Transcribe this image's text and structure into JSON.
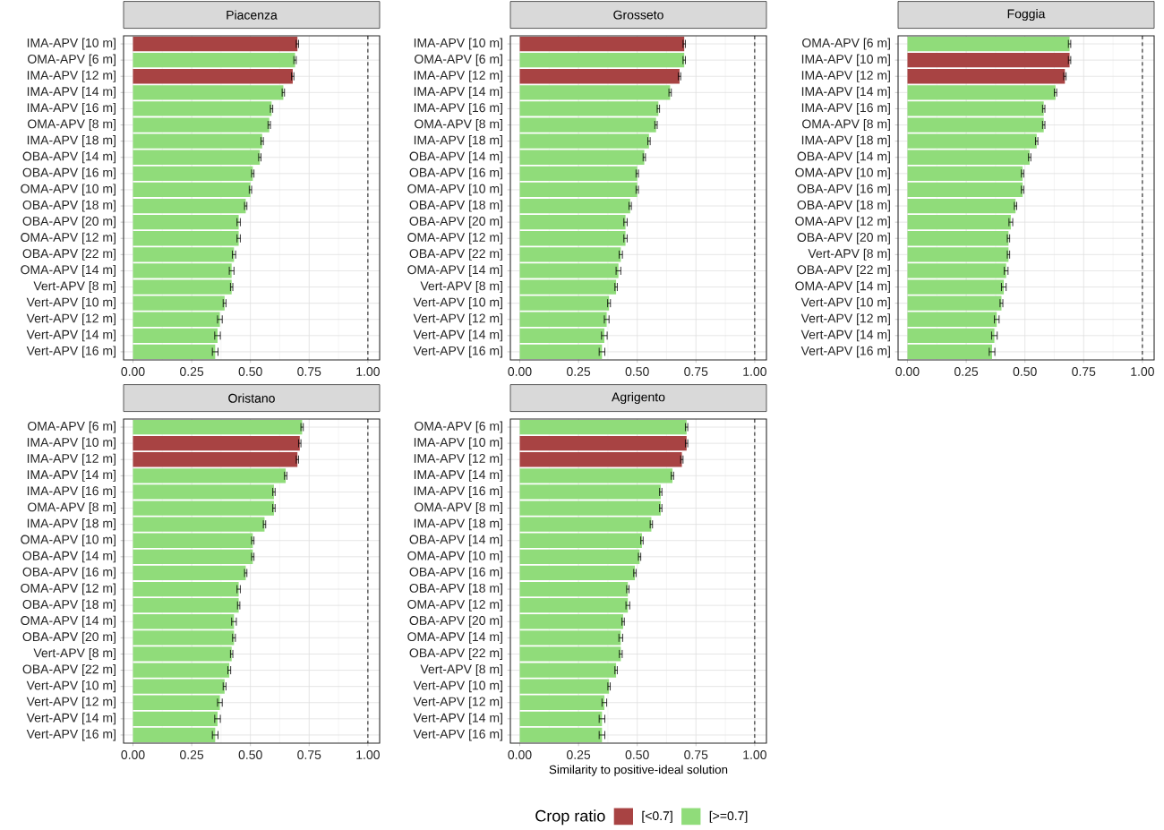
{
  "chart_data": [
    {
      "type": "bar",
      "orientation": "horizontal",
      "title": "Piacenza",
      "categories": [
        "IMA-APV [10 m]",
        "OMA-APV [6 m]",
        "IMA-APV [12 m]",
        "IMA-APV [14 m]",
        "IMA-APV [16 m]",
        "OMA-APV [8 m]",
        "IMA-APV [18 m]",
        "OBA-APV [14 m]",
        "OBA-APV [16 m]",
        "OMA-APV [10 m]",
        "OBA-APV [18 m]",
        "OBA-APV [20 m]",
        "OMA-APV [12 m]",
        "OBA-APV [22 m]",
        "OMA-APV [14 m]",
        "Vert-APV [8 m]",
        "Vert-APV [10 m]",
        "Vert-APV [12 m]",
        "Vert-APV [14 m]",
        "Vert-APV [16 m]"
      ],
      "series": [
        {
          "color": "#a84343",
          "values": [
            0.7,
            null,
            0.68,
            null,
            null,
            null,
            null,
            null,
            null,
            null,
            null,
            null,
            null,
            null,
            null,
            null,
            null,
            null,
            null,
            null
          ],
          "errors": [
            0.005,
            null,
            0.005,
            null,
            null,
            null,
            null,
            null,
            null,
            null,
            null,
            null,
            null,
            null,
            null,
            null,
            null,
            null,
            null,
            null
          ]
        },
        {
          "color": "#90dc7a",
          "values": [
            null,
            0.69,
            null,
            0.64,
            0.59,
            0.58,
            0.55,
            0.54,
            0.51,
            0.5,
            0.48,
            0.45,
            0.45,
            0.43,
            0.42,
            0.42,
            0.39,
            0.37,
            0.36,
            0.35
          ],
          "errors": [
            null,
            0.005,
            null,
            0.005,
            0.005,
            0.005,
            0.005,
            0.005,
            0.005,
            0.005,
            0.005,
            0.007,
            0.007,
            0.007,
            0.01,
            0.005,
            0.006,
            0.01,
            0.012,
            0.012
          ]
        }
      ],
      "xlim": [
        -0.04,
        1.05
      ],
      "xticks": [
        {
          "value": 0,
          "label": "0.00"
        },
        {
          "value": 0.25,
          "label": "0.25"
        },
        {
          "value": 0.5,
          "label": "0.50"
        },
        {
          "value": 0.75,
          "label": "0.75"
        },
        {
          "value": 1,
          "label": "1.00"
        }
      ],
      "grid": true,
      "ref_lines": [
        {
          "axis": "x",
          "value": 1,
          "line_style": "dashed"
        }
      ]
    },
    {
      "type": "bar",
      "orientation": "horizontal",
      "title": "Grosseto",
      "categories": [
        "IMA-APV [10 m]",
        "OMA-APV [6 m]",
        "IMA-APV [12 m]",
        "IMA-APV [14 m]",
        "IMA-APV [16 m]",
        "OMA-APV [8 m]",
        "IMA-APV [18 m]",
        "OBA-APV [14 m]",
        "OBA-APV [16 m]",
        "OMA-APV [10 m]",
        "OBA-APV [18 m]",
        "OBA-APV [20 m]",
        "OMA-APV [12 m]",
        "OBA-APV [22 m]",
        "OMA-APV [14 m]",
        "Vert-APV [8 m]",
        "Vert-APV [10 m]",
        "Vert-APV [12 m]",
        "Vert-APV [14 m]",
        "Vert-APV [16 m]"
      ],
      "series": [
        {
          "color": "#a84343",
          "values": [
            0.7,
            null,
            0.68,
            null,
            null,
            null,
            null,
            null,
            null,
            null,
            null,
            null,
            null,
            null,
            null,
            null,
            null,
            null,
            null,
            null
          ],
          "errors": [
            0.005,
            null,
            0.005,
            null,
            null,
            null,
            null,
            null,
            null,
            null,
            null,
            null,
            null,
            null,
            null,
            null,
            null,
            null,
            null,
            null
          ]
        },
        {
          "color": "#90dc7a",
          "values": [
            null,
            0.7,
            null,
            0.64,
            0.59,
            0.58,
            0.55,
            0.53,
            0.5,
            0.5,
            0.47,
            0.45,
            0.45,
            0.43,
            0.42,
            0.41,
            0.38,
            0.37,
            0.36,
            0.35
          ],
          "errors": [
            null,
            0.005,
            null,
            0.005,
            0.005,
            0.005,
            0.005,
            0.005,
            0.005,
            0.005,
            0.005,
            0.007,
            0.007,
            0.007,
            0.01,
            0.005,
            0.006,
            0.01,
            0.012,
            0.012
          ]
        }
      ],
      "xlim": [
        -0.04,
        1.05
      ],
      "xticks": [
        {
          "value": 0,
          "label": "0.00"
        },
        {
          "value": 0.25,
          "label": "0.25"
        },
        {
          "value": 0.5,
          "label": "0.50"
        },
        {
          "value": 0.75,
          "label": "0.75"
        },
        {
          "value": 1,
          "label": "1.00"
        }
      ],
      "grid": true,
      "ref_lines": [
        {
          "axis": "x",
          "value": 1,
          "line_style": "dashed"
        }
      ]
    },
    {
      "type": "bar",
      "orientation": "horizontal",
      "title": "Foggia",
      "categories": [
        "OMA-APV [6 m]",
        "IMA-APV [10 m]",
        "IMA-APV [12 m]",
        "IMA-APV [14 m]",
        "IMA-APV [16 m]",
        "OMA-APV [8 m]",
        "IMA-APV [18 m]",
        "OBA-APV [14 m]",
        "OMA-APV [10 m]",
        "OBA-APV [16 m]",
        "OBA-APV [18 m]",
        "OMA-APV [12 m]",
        "OBA-APV [20 m]",
        "Vert-APV [8 m]",
        "OBA-APV [22 m]",
        "OMA-APV [14 m]",
        "Vert-APV [10 m]",
        "Vert-APV [12 m]",
        "Vert-APV [14 m]",
        "Vert-APV [16 m]"
      ],
      "series": [
        {
          "color": "#a84343",
          "values": [
            null,
            0.69,
            0.67,
            null,
            null,
            null,
            null,
            null,
            null,
            null,
            null,
            null,
            null,
            null,
            null,
            null,
            null,
            null,
            null,
            null
          ],
          "errors": [
            null,
            0.005,
            0.005,
            null,
            null,
            null,
            null,
            null,
            null,
            null,
            null,
            null,
            null,
            null,
            null,
            null,
            null,
            null,
            null,
            null
          ]
        },
        {
          "color": "#90dc7a",
          "values": [
            0.69,
            null,
            null,
            0.63,
            0.58,
            0.58,
            0.55,
            0.52,
            0.49,
            0.49,
            0.46,
            0.44,
            0.43,
            0.43,
            0.42,
            0.41,
            0.4,
            0.38,
            0.37,
            0.36
          ],
          "errors": [
            0.005,
            null,
            null,
            0.005,
            0.005,
            0.005,
            0.005,
            0.005,
            0.005,
            0.005,
            0.005,
            0.008,
            0.005,
            0.005,
            0.008,
            0.01,
            0.006,
            0.01,
            0.012,
            0.012
          ]
        }
      ],
      "xlim": [
        -0.04,
        1.05
      ],
      "xticks": [
        {
          "value": 0,
          "label": "0.00"
        },
        {
          "value": 0.25,
          "label": "0.25"
        },
        {
          "value": 0.5,
          "label": "0.50"
        },
        {
          "value": 0.75,
          "label": "0.75"
        },
        {
          "value": 1,
          "label": "1.00"
        }
      ],
      "grid": true,
      "ref_lines": [
        {
          "axis": "x",
          "value": 1,
          "line_style": "dashed"
        }
      ]
    },
    {
      "type": "bar",
      "orientation": "horizontal",
      "title": "Oristano",
      "categories": [
        "OMA-APV [6 m]",
        "IMA-APV [10 m]",
        "IMA-APV [12 m]",
        "IMA-APV [14 m]",
        "IMA-APV [16 m]",
        "OMA-APV [8 m]",
        "IMA-APV [18 m]",
        "OMA-APV [10 m]",
        "OBA-APV [14 m]",
        "OBA-APV [16 m]",
        "OMA-APV [12 m]",
        "OBA-APV [18 m]",
        "OMA-APV [14 m]",
        "OBA-APV [20 m]",
        "Vert-APV [8 m]",
        "OBA-APV [22 m]",
        "Vert-APV [10 m]",
        "Vert-APV [12 m]",
        "Vert-APV [14 m]",
        "Vert-APV [16 m]"
      ],
      "series": [
        {
          "color": "#a84343",
          "values": [
            null,
            0.71,
            0.7,
            null,
            null,
            null,
            null,
            null,
            null,
            null,
            null,
            null,
            null,
            null,
            null,
            null,
            null,
            null,
            null,
            null
          ],
          "errors": [
            null,
            0.005,
            0.005,
            null,
            null,
            null,
            null,
            null,
            null,
            null,
            null,
            null,
            null,
            null,
            null,
            null,
            null,
            null,
            null,
            null
          ]
        },
        {
          "color": "#90dc7a",
          "values": [
            0.72,
            null,
            null,
            0.65,
            0.6,
            0.6,
            0.56,
            0.51,
            0.51,
            0.48,
            0.45,
            0.45,
            0.43,
            0.43,
            0.42,
            0.41,
            0.39,
            0.37,
            0.36,
            0.35
          ],
          "errors": [
            0.005,
            null,
            null,
            0.005,
            0.005,
            0.005,
            0.005,
            0.005,
            0.005,
            0.005,
            0.007,
            0.005,
            0.01,
            0.006,
            0.005,
            0.006,
            0.006,
            0.01,
            0.012,
            0.012
          ]
        }
      ],
      "xlim": [
        -0.04,
        1.05
      ],
      "xticks": [
        {
          "value": 0,
          "label": "0.00"
        },
        {
          "value": 0.25,
          "label": "0.25"
        },
        {
          "value": 0.5,
          "label": "0.50"
        },
        {
          "value": 0.75,
          "label": "0.75"
        },
        {
          "value": 1,
          "label": "1.00"
        }
      ],
      "grid": true,
      "ref_lines": [
        {
          "axis": "x",
          "value": 1,
          "line_style": "dashed"
        }
      ]
    },
    {
      "type": "bar",
      "orientation": "horizontal",
      "title": "Agrigento",
      "xlabel": "Similarity to positive-ideal solution",
      "categories": [
        "OMA-APV [6 m]",
        "IMA-APV [10 m]",
        "IMA-APV [12 m]",
        "IMA-APV [14 m]",
        "IMA-APV [16 m]",
        "OMA-APV [8 m]",
        "IMA-APV [18 m]",
        "OBA-APV [14 m]",
        "OMA-APV [10 m]",
        "OBA-APV [16 m]",
        "OBA-APV [18 m]",
        "OMA-APV [12 m]",
        "OBA-APV [20 m]",
        "OMA-APV [14 m]",
        "OBA-APV [22 m]",
        "Vert-APV [8 m]",
        "Vert-APV [10 m]",
        "Vert-APV [12 m]",
        "Vert-APV [14 m]",
        "Vert-APV [16 m]"
      ],
      "series": [
        {
          "name": "[<0.7]",
          "color": "#a84343",
          "values": [
            null,
            0.71,
            0.69,
            null,
            null,
            null,
            null,
            null,
            null,
            null,
            null,
            null,
            null,
            null,
            null,
            null,
            null,
            null,
            null,
            null
          ],
          "errors": [
            null,
            0.005,
            0.005,
            null,
            null,
            null,
            null,
            null,
            null,
            null,
            null,
            null,
            null,
            null,
            null,
            null,
            null,
            null,
            null,
            null
          ]
        },
        {
          "name": "[>=0.7]",
          "color": "#90dc7a",
          "values": [
            0.71,
            null,
            null,
            0.65,
            0.6,
            0.6,
            0.56,
            0.52,
            0.51,
            0.49,
            0.46,
            0.46,
            0.44,
            0.43,
            0.43,
            0.41,
            0.38,
            0.36,
            0.35,
            0.35
          ],
          "errors": [
            0.005,
            null,
            null,
            0.005,
            0.005,
            0.005,
            0.005,
            0.005,
            0.005,
            0.005,
            0.005,
            0.008,
            0.005,
            0.008,
            0.006,
            0.005,
            0.005,
            0.01,
            0.012,
            0.012
          ]
        }
      ],
      "xlim": [
        -0.04,
        1.05
      ],
      "xticks": [
        {
          "value": 0,
          "label": "0.00"
        },
        {
          "value": 0.25,
          "label": "0.25"
        },
        {
          "value": 0.5,
          "label": "0.50"
        },
        {
          "value": 0.75,
          "label": "0.75"
        },
        {
          "value": 1,
          "label": "1.00"
        }
      ],
      "grid": true,
      "ref_lines": [
        {
          "axis": "x",
          "value": 1,
          "line_style": "dashed"
        }
      ],
      "legend": "bottom",
      "legend_title": "Crop ratio"
    }
  ]
}
